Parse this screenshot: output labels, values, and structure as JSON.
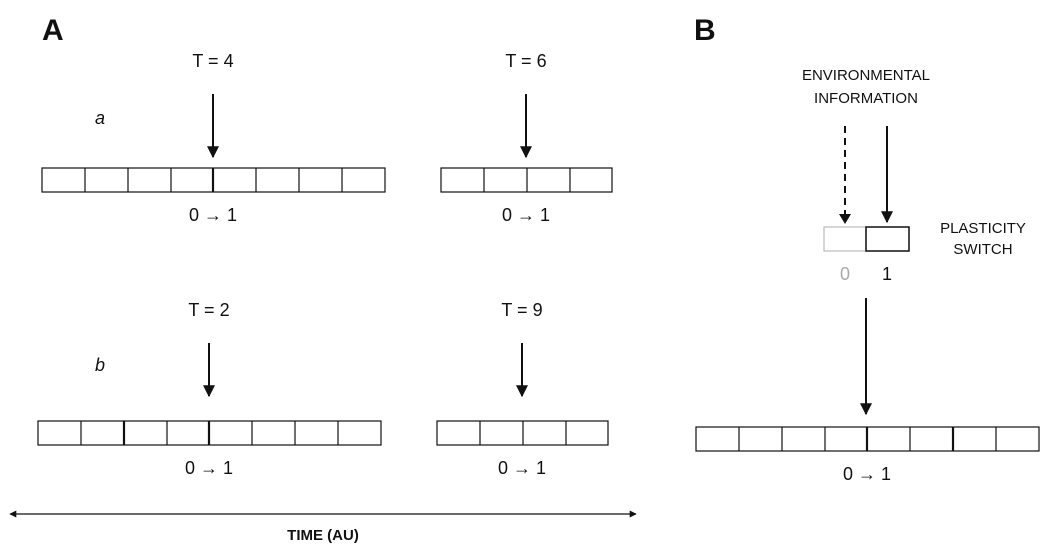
{
  "panels": {
    "a": "A",
    "b": "B"
  },
  "panel_a": {
    "row_a": {
      "label": "a",
      "left_time": "T = 4",
      "right_time": "T = 6",
      "left_caption": "0 → 1",
      "right_caption": "0 → 1"
    },
    "row_b": {
      "label": "b",
      "left_time": "T = 2",
      "right_time": "T = 9",
      "left_caption": "0 → 1",
      "right_caption": "0 → 1"
    },
    "axis_label": "TIME (AU)"
  },
  "panel_b": {
    "env_line1": "ENVIRONMENTAL",
    "env_line2": "INFORMATION",
    "switch_line1": "PLASTICITY",
    "switch_line2": "SWITCH",
    "switch_off": "0",
    "switch_on": "1",
    "caption": "0 → 1"
  }
}
